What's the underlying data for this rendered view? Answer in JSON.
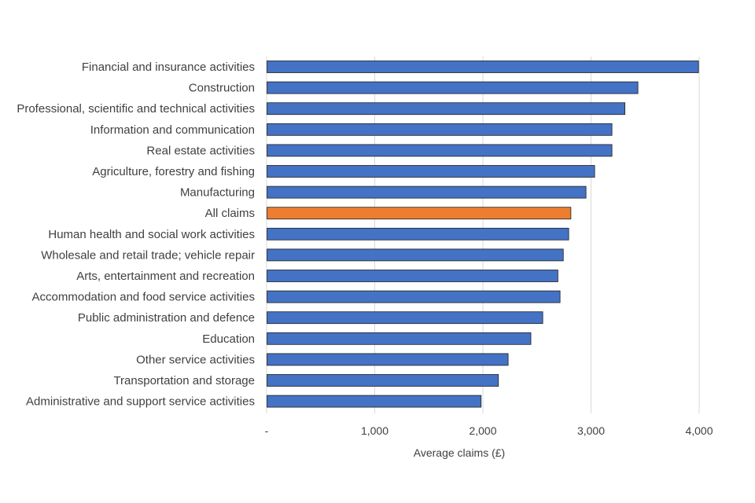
{
  "chart_data": {
    "type": "bar",
    "orientation": "horizontal",
    "title": "",
    "xlabel": "Average claims (£)",
    "ylabel": "",
    "xlim": [
      0,
      4000
    ],
    "xticks": [
      0,
      1000,
      2000,
      3000,
      4000
    ],
    "xtick_labels": [
      "-",
      "1,000",
      "2,000",
      "3,000",
      "4,000"
    ],
    "grid": "vertical",
    "legend": "none",
    "colors": {
      "default": "#4472C4",
      "highlight": "#ED7D31",
      "grid": "#d9d9d9"
    },
    "highlight_category": "All claims",
    "categories": [
      "Financial and insurance activities",
      "Construction",
      "Professional, scientific and technical activities",
      "Information and communication",
      "Real estate activities",
      "Agriculture, forestry and fishing",
      "Manufacturing",
      "All claims",
      "Human health and social work activities",
      "Wholesale and retail trade; vehicle repair",
      "Arts, entertainment and recreation",
      "Accommodation and food service activities",
      "Public administration and defence",
      "Education",
      "Other service activities",
      "Transportation and storage",
      "Administrative and support service activities"
    ],
    "values": [
      3990,
      3430,
      3310,
      3190,
      3190,
      3030,
      2950,
      2810,
      2790,
      2740,
      2690,
      2710,
      2550,
      2440,
      2230,
      2140,
      1980
    ]
  }
}
